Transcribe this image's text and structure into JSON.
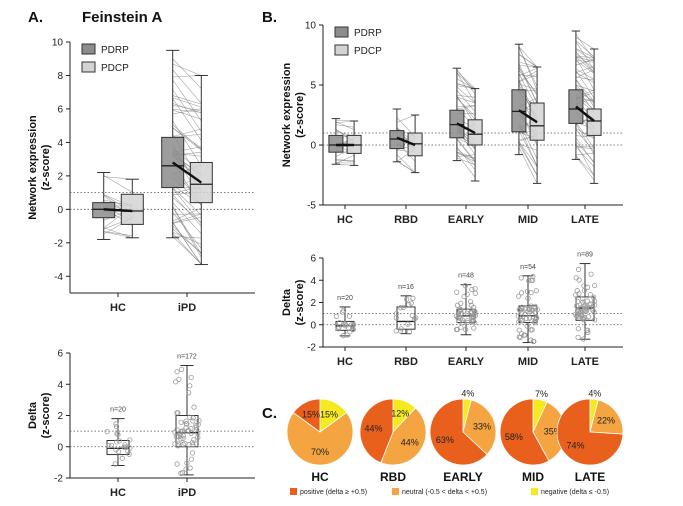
{
  "figure": {
    "panel_a": {
      "letter": "A.",
      "title": "Feinstein A"
    },
    "panel_b": {
      "letter": "B."
    },
    "panel_c": {
      "letter": "C."
    }
  },
  "chart_data": [
    {
      "id": "a_expr",
      "type": "box",
      "ylabel": [
        "Network expression",
        "(z-score)"
      ],
      "ylim": [
        -5,
        10
      ],
      "yticks": [
        -4,
        -2,
        0,
        2,
        4,
        6,
        8,
        10
      ],
      "dotted_lines": [
        0,
        1
      ],
      "categories": [
        "HC",
        "iPD"
      ],
      "legend": [
        "PDRP",
        "PDCP"
      ],
      "series": [
        {
          "name": "PDRP",
          "color": "#8c8c8c",
          "boxes": [
            {
              "min": -1.8,
              "q1": -0.5,
              "median": 0.0,
              "q3": 0.4,
              "max": 2.2
            },
            {
              "min": -1.7,
              "q1": 1.3,
              "median": 2.6,
              "q3": 4.3,
              "max": 9.5
            }
          ]
        },
        {
          "name": "PDCP",
          "color": "#d3d3d3",
          "boxes": [
            {
              "min": -1.7,
              "q1": -0.9,
              "median": -0.1,
              "q3": 0.9,
              "max": 1.8
            },
            {
              "min": -3.3,
              "q1": 0.4,
              "median": 1.5,
              "q3": 2.8,
              "max": 8.0
            }
          ]
        }
      ],
      "group_means": [
        {
          "from": 0.0,
          "to": -0.1
        },
        {
          "from": 2.8,
          "to": 1.6
        }
      ],
      "lines_per_group": [
        20,
        60
      ]
    },
    {
      "id": "a_delta",
      "type": "box_scatter",
      "ylabel": [
        "Delta",
        "(z-score)"
      ],
      "ylim": [
        -2,
        6
      ],
      "yticks": [
        -2,
        0,
        2,
        4,
        6
      ],
      "dotted_lines": [
        0,
        1
      ],
      "categories": [
        "HC",
        "iPD"
      ],
      "n_labels": [
        "n=20",
        "n=172"
      ],
      "boxes": [
        {
          "min": -1.2,
          "q1": -0.5,
          "median": -0.1,
          "q3": 0.4,
          "max": 1.8
        },
        {
          "min": -1.8,
          "q1": 0.0,
          "median": 0.9,
          "q3": 2.0,
          "max": 5.2
        }
      ]
    },
    {
      "id": "b_expr",
      "type": "box",
      "ylabel": [
        "Network expression",
        "(z-score)"
      ],
      "ylim": [
        -5,
        10
      ],
      "yticks": [
        -5,
        0,
        5,
        10
      ],
      "dotted_lines": [
        0,
        1
      ],
      "categories": [
        "HC",
        "RBD",
        "EARLY",
        "MID",
        "LATE"
      ],
      "legend": [
        "PDRP",
        "PDCP"
      ],
      "series": [
        {
          "name": "PDRP",
          "color": "#8c8c8c",
          "boxes": [
            {
              "min": -1.6,
              "q1": -0.6,
              "median": 0.0,
              "q3": 0.8,
              "max": 2.2
            },
            {
              "min": -1.4,
              "q1": -0.3,
              "median": 0.5,
              "q3": 1.2,
              "max": 3.0
            },
            {
              "min": -1.3,
              "q1": 0.6,
              "median": 1.7,
              "q3": 2.9,
              "max": 6.4
            },
            {
              "min": -0.8,
              "q1": 1.1,
              "median": 2.8,
              "q3": 4.6,
              "max": 8.4
            },
            {
              "min": -1.2,
              "q1": 1.8,
              "median": 3.0,
              "q3": 4.6,
              "max": 9.5
            }
          ]
        },
        {
          "name": "PDCP",
          "color": "#d3d3d3",
          "boxes": [
            {
              "min": -1.7,
              "q1": -0.7,
              "median": 0.0,
              "q3": 0.8,
              "max": 2.0
            },
            {
              "min": -2.3,
              "q1": -0.9,
              "median": 0.1,
              "q3": 1.0,
              "max": 2.5
            },
            {
              "min": -3.0,
              "q1": 0.0,
              "median": 0.9,
              "q3": 2.1,
              "max": 4.7
            },
            {
              "min": -3.2,
              "q1": 0.4,
              "median": 1.6,
              "q3": 3.5,
              "max": 6.5
            },
            {
              "min": -3.2,
              "q1": 0.8,
              "median": 2.0,
              "q3": 3.0,
              "max": 8.0
            }
          ]
        }
      ],
      "group_means": [
        {
          "from": 0.0,
          "to": 0.0
        },
        {
          "from": 0.6,
          "to": 0.0
        },
        {
          "from": 1.8,
          "to": 1.0
        },
        {
          "from": 2.9,
          "to": 1.9
        },
        {
          "from": 3.2,
          "to": 2.0
        }
      ],
      "lines_per_group": [
        20,
        16,
        40,
        45,
        55
      ]
    },
    {
      "id": "b_delta",
      "type": "box_scatter",
      "ylabel": [
        "Delta",
        "(z-score)"
      ],
      "ylim": [
        -2,
        6
      ],
      "yticks": [
        -2,
        0,
        2,
        4,
        6
      ],
      "dotted_lines": [
        0,
        1
      ],
      "categories": [
        "HC",
        "RBD",
        "EARLY",
        "MID",
        "LATE"
      ],
      "n_labels": [
        "n=20",
        "n=16",
        "n=48",
        "n=54",
        "n=89"
      ],
      "boxes": [
        {
          "min": -1.0,
          "q1": -0.5,
          "median": -0.1,
          "q3": 0.3,
          "max": 1.6
        },
        {
          "min": -0.8,
          "q1": -0.4,
          "median": 0.3,
          "q3": 1.6,
          "max": 2.6
        },
        {
          "min": -0.9,
          "q1": 0.2,
          "median": 0.8,
          "q3": 1.4,
          "max": 3.6
        },
        {
          "min": -1.6,
          "q1": 0.2,
          "median": 0.8,
          "q3": 1.7,
          "max": 4.4
        },
        {
          "min": -1.3,
          "q1": 0.4,
          "median": 1.5,
          "q3": 2.5,
          "max": 5.5
        }
      ]
    },
    {
      "id": "c_pies",
      "type": "pie",
      "colors": {
        "positive": "#e8601c",
        "neutral": "#f5a442",
        "negative": "#f4ea1f"
      },
      "legend": [
        {
          "key": "positive",
          "label": "positive (delta ≥ +0.5)"
        },
        {
          "key": "neutral",
          "label": "neutral (-0.5 < delta < +0.5)"
        },
        {
          "key": "negative",
          "label": "negative (delta ≤ -0.5)"
        }
      ],
      "pies": [
        {
          "group": "HC",
          "positive": 15,
          "neutral": 70,
          "negative": 15,
          "labels": {
            "positive": "15%",
            "neutral": "70%",
            "negative": "15%"
          }
        },
        {
          "group": "RBD",
          "positive": 44,
          "neutral": 44,
          "negative": 12,
          "labels": {
            "positive": "44%",
            "neutral": "44%",
            "negative": "12%"
          }
        },
        {
          "group": "EARLY",
          "positive": 63,
          "neutral": 33,
          "negative": 4,
          "labels": {
            "positive": "63%",
            "neutral": "33%",
            "negative": "4%"
          }
        },
        {
          "group": "MID",
          "positive": 58,
          "neutral": 35,
          "negative": 7,
          "labels": {
            "positive": "58%",
            "neutral": "35%",
            "negative": "7%"
          }
        },
        {
          "group": "LATE",
          "positive": 74,
          "neutral": 22,
          "negative": 4,
          "labels": {
            "positive": "74%",
            "neutral": "22%",
            "negative": "4%"
          }
        }
      ]
    }
  ]
}
